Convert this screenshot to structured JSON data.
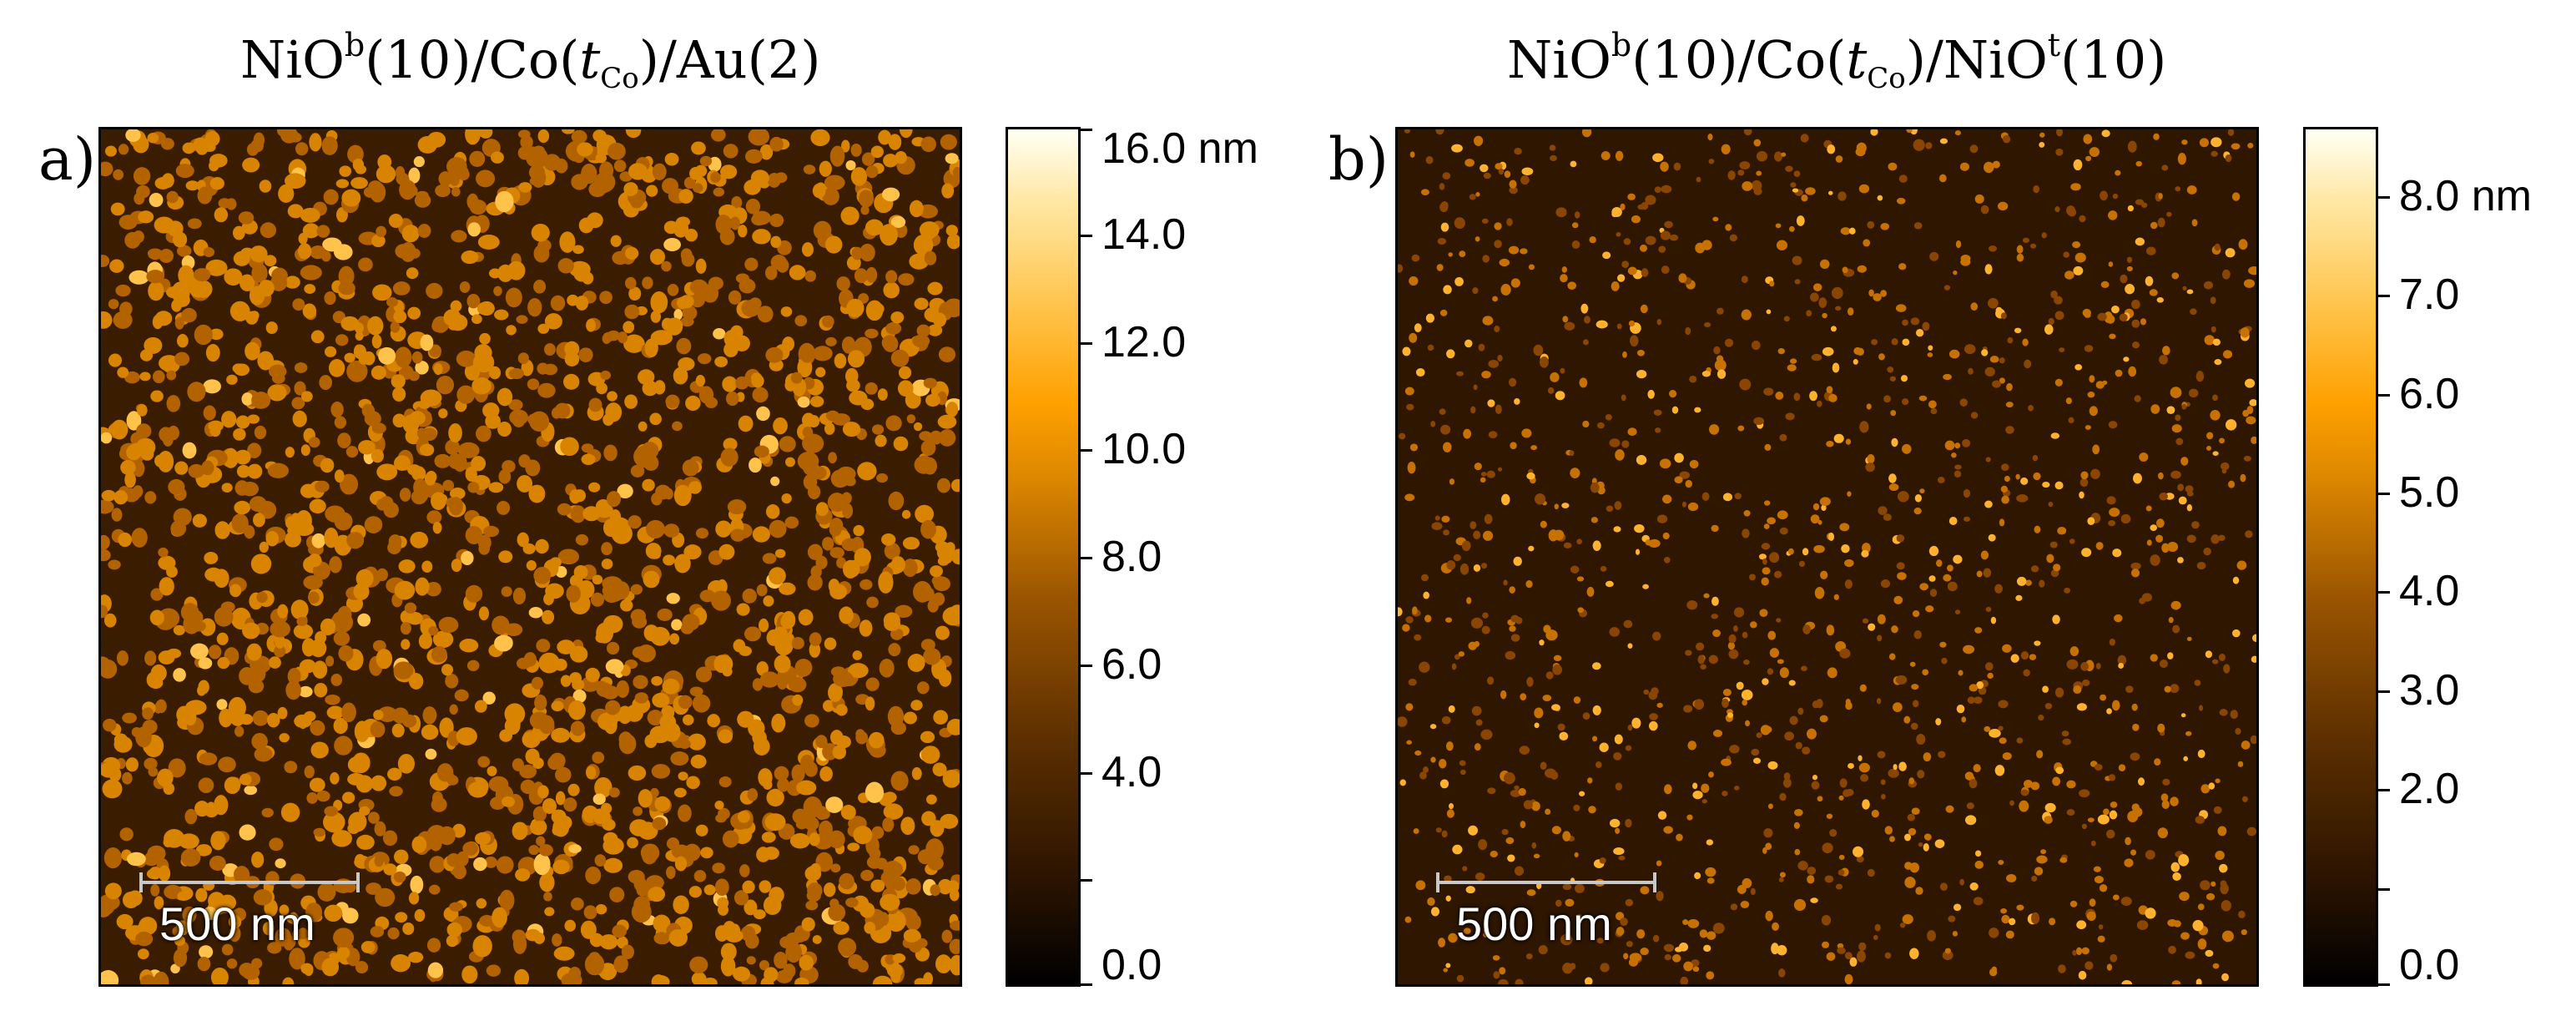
{
  "panels": [
    {
      "label": "a)",
      "title": {
        "base1": "NiO",
        "sup1": "b",
        "mid": "(10)/Co(",
        "var": "t",
        "sub": "Co",
        "end": ")/Au(2)"
      },
      "scale_bar": "500 nm",
      "colorbar": {
        "unit": "nm",
        "range": [
          0,
          16
        ],
        "labels": [
          "16.0 nm",
          "14.0",
          "12.0",
          "10.0",
          "8.0",
          "6.0",
          "4.0",
          "0.0"
        ],
        "label_values": [
          16,
          14,
          12,
          10,
          8,
          6,
          4,
          0
        ],
        "minor_tick_values": [
          2
        ]
      }
    },
    {
      "label": "b)",
      "title": {
        "base1": "NiO",
        "sup1": "b",
        "mid": "(10)/Co(",
        "var": "t",
        "sub": "Co",
        "end": ")/NiO",
        "sup2": "t",
        "end2": "(10)"
      },
      "scale_bar": "500 nm",
      "colorbar": {
        "unit": "nm",
        "range": [
          0,
          8.7
        ],
        "labels": [
          "8.0 nm",
          "7.0",
          "6.0",
          "5.0",
          "4.0",
          "3.0",
          "2.0",
          "0.0"
        ],
        "label_values": [
          8,
          7,
          6,
          5,
          4,
          3,
          2,
          0
        ],
        "minor_tick_values": [
          1
        ]
      }
    }
  ],
  "colors": {
    "colormap_low": "#000000",
    "colormap_mid": "#ffa000",
    "colormap_high": "#fffff4",
    "scale_bar": "#c8c8c8"
  }
}
